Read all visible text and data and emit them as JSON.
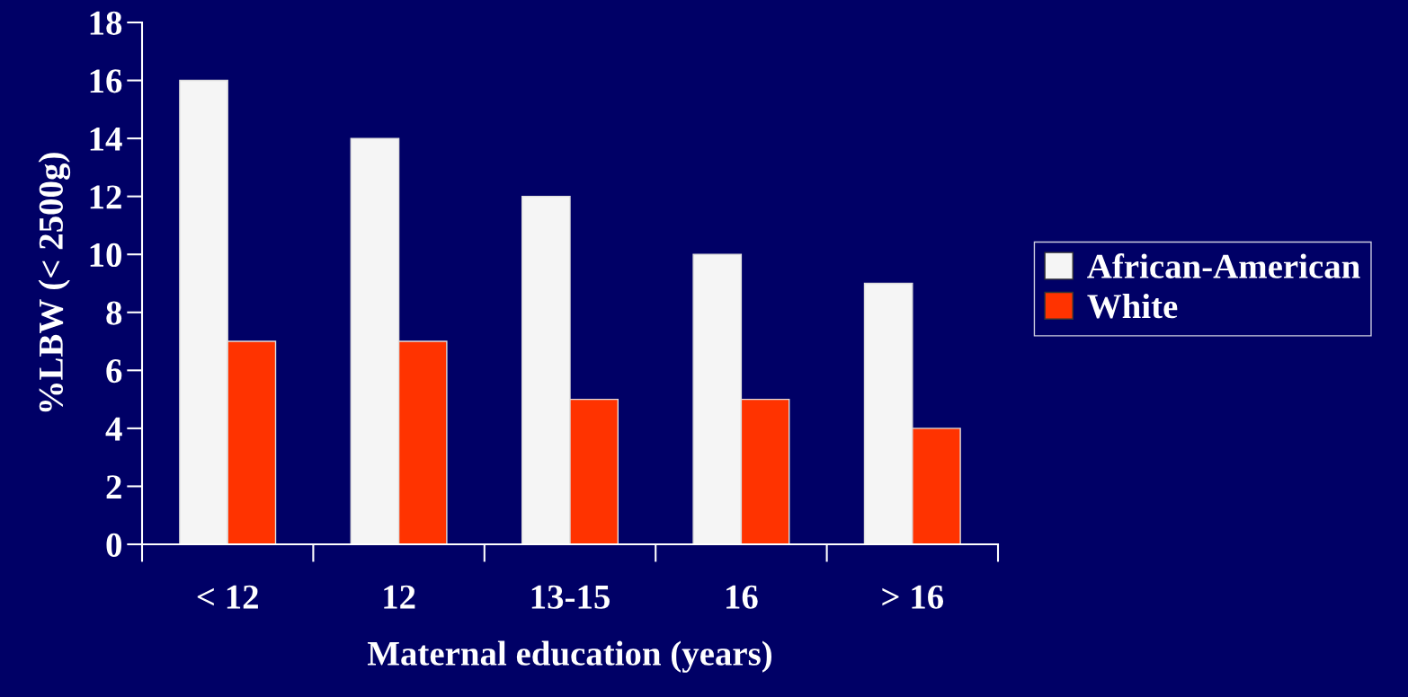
{
  "chart_data": {
    "type": "bar",
    "xlabel": "Maternal education (years)",
    "ylabel": "%LBW (< 2500g)",
    "categories": [
      "< 12",
      "12",
      "13-15",
      "16",
      "> 16"
    ],
    "series": [
      {
        "name": "African-American",
        "color": "#f5f5f5",
        "values": [
          16,
          14,
          12,
          10,
          9
        ]
      },
      {
        "name": "White",
        "color": "#ff3300",
        "values": [
          7,
          7,
          5,
          5,
          4
        ]
      }
    ],
    "ylim": [
      0,
      18
    ],
    "yticks": [
      0,
      2,
      4,
      6,
      8,
      10,
      12,
      14,
      16,
      18
    ],
    "grid": false,
    "legend": "right"
  }
}
